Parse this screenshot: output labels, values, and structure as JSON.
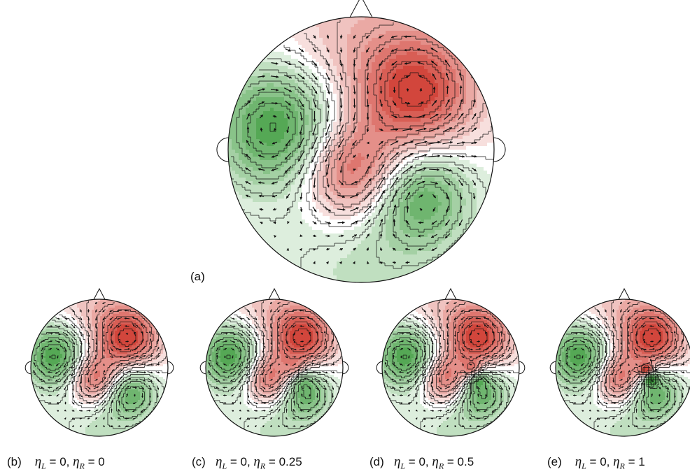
{
  "panels": [
    {
      "id": "a",
      "tag": "(a)",
      "eta_L": "",
      "eta_R": "",
      "sharpness": 0
    },
    {
      "id": "b",
      "tag": "(b)",
      "eta_L": "0",
      "eta_R": "0",
      "sharpness": 0
    },
    {
      "id": "c",
      "tag": "(c)",
      "eta_L": "0",
      "eta_R": "0.25",
      "sharpness": 0.25
    },
    {
      "id": "d",
      "tag": "(d)",
      "eta_L": "0",
      "eta_R": "0.5",
      "sharpness": 0.5
    },
    {
      "id": "e",
      "tag": "(e)",
      "eta_L": "0",
      "eta_R": "1",
      "sharpness": 1
    }
  ],
  "symbols": {
    "eta": "η",
    "L": "L",
    "R": "R",
    "sep": ", "
  },
  "colors": {
    "positive": "#d0473a",
    "negative": "#3e9b3c",
    "contour": "#111111",
    "arrow": "#111111"
  }
}
